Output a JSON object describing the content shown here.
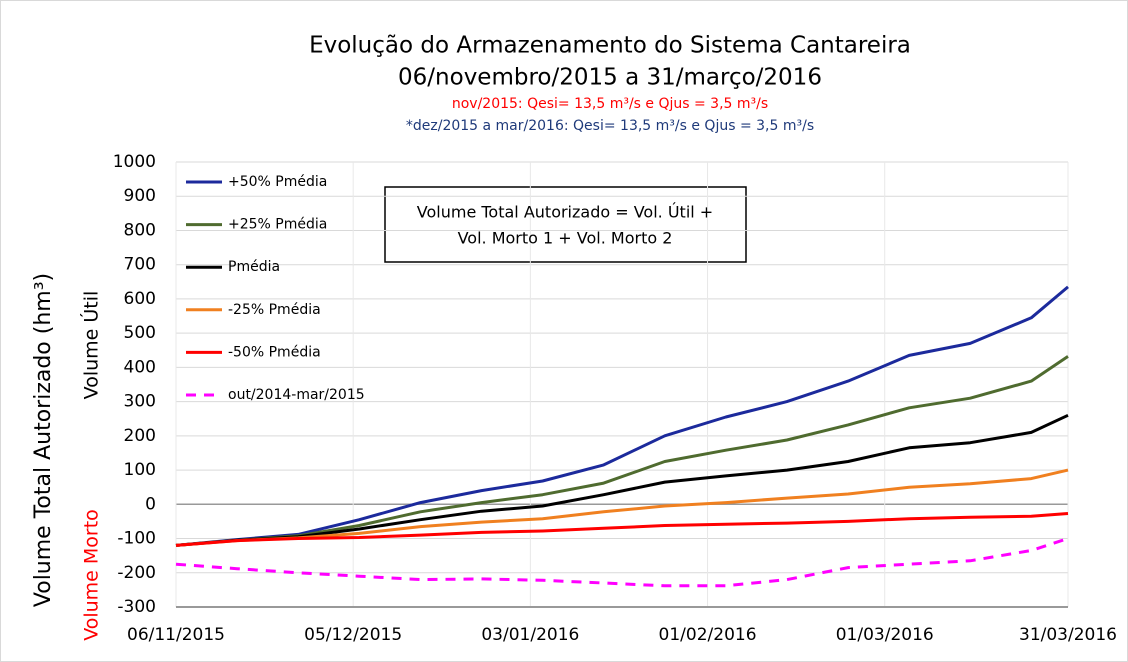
{
  "chart_data": {
    "type": "line",
    "title": "Evolução do Armazenamento do Sistema Cantareira",
    "subtitle": "06/novembro/2015 a 31/março/2016",
    "notes": [
      {
        "text": "nov/2015: Qesi= 13,5 m³/s e Qjus = 3,5 m³/s",
        "color": "#ff0000"
      },
      {
        "text": "*dez/2015 a mar/2016: Qesi= 13,5 m³/s e Qjus = 3,5 m³/s",
        "color": "#1f3a7a"
      }
    ],
    "ylabel": "Volume Total Autorizado (hm³)",
    "ylabel_zones": [
      {
        "text": "Volume Útil",
        "color": "#000000"
      },
      {
        "text": "Volume Morto",
        "color": "#ff0000"
      }
    ],
    "annotation": [
      "Volume Total Autorizado = Vol. Útil +",
      "Vol. Morto 1 + Vol. Morto 2"
    ],
    "x": [
      "06/11/2015",
      "16/11/2015",
      "26/11/2015",
      "06/12/2015",
      "16/12/2015",
      "26/12/2015",
      "05/01/2016",
      "15/01/2016",
      "25/01/2016",
      "04/02/2016",
      "14/02/2016",
      "24/02/2016",
      "05/03/2016",
      "15/03/2016",
      "25/03/2016",
      "31/03/2016"
    ],
    "xticks": [
      "06/11/2015",
      "05/12/2015",
      "03/01/2016",
      "01/02/2016",
      "01/03/2016",
      "31/03/2016"
    ],
    "ylim": [
      -300,
      1000
    ],
    "yticks": [
      -300,
      -200,
      -100,
      0,
      100,
      200,
      300,
      400,
      500,
      600,
      700,
      800,
      900,
      1000
    ],
    "grid": true,
    "legend": "upper left",
    "series": [
      {
        "name": "+50% Pmédia",
        "color": "#1c2a9c",
        "dash": false,
        "values": [
          -120,
          -103,
          -88,
          -45,
          5,
          40,
          68,
          115,
          200,
          255,
          300,
          360,
          435,
          470,
          545,
          635
        ]
      },
      {
        "name": "+25% Pmédia",
        "color": "#4f6b2f",
        "dash": false,
        "values": [
          -120,
          -105,
          -92,
          -62,
          -22,
          5,
          28,
          62,
          125,
          158,
          188,
          232,
          282,
          310,
          360,
          432
        ]
      },
      {
        "name": "Pmédia",
        "color": "#000000",
        "dash": false,
        "values": [
          -120,
          -105,
          -95,
          -72,
          -45,
          -20,
          -5,
          28,
          65,
          83,
          100,
          125,
          165,
          180,
          210,
          260
        ]
      },
      {
        "name": "-25% Pmédia",
        "color": "#f08020",
        "dash": false,
        "values": [
          -120,
          -106,
          -98,
          -85,
          -65,
          -52,
          -42,
          -22,
          -5,
          5,
          18,
          30,
          50,
          60,
          75,
          100
        ]
      },
      {
        "name": "-50% Pmédia",
        "color": "#ff0000",
        "dash": false,
        "values": [
          -120,
          -106,
          -100,
          -97,
          -90,
          -82,
          -78,
          -70,
          -62,
          -58,
          -55,
          -50,
          -42,
          -38,
          -35,
          -27
        ]
      },
      {
        "name": "out/2014-mar/2015",
        "color": "#ff00ff",
        "dash": true,
        "values": [
          -175,
          -188,
          -200,
          -210,
          -220,
          -218,
          -222,
          -230,
          -238,
          -238,
          -220,
          -185,
          -175,
          -165,
          -135,
          -100
        ]
      }
    ]
  }
}
